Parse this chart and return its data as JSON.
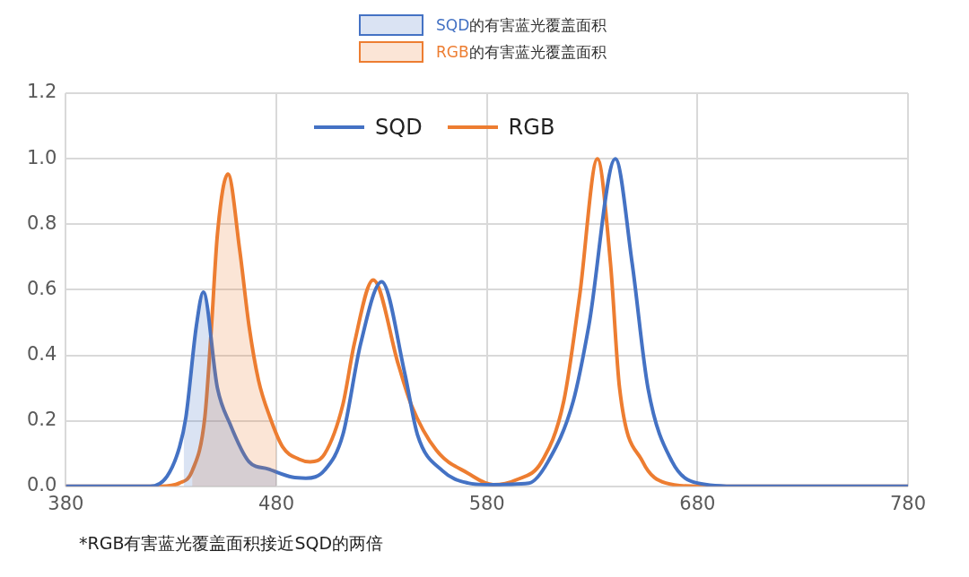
{
  "chart_data": {
    "type": "line",
    "annotations": [
      "*RGB有害蓝光覆盖面积接近SQD的两倍"
    ],
    "xlim": [
      380,
      780
    ],
    "xticks": [
      380,
      480,
      580,
      680,
      780
    ],
    "ylim": [
      0,
      1.2
    ],
    "yticks": [
      {
        "value": 0,
        "label": "0.0"
      },
      {
        "value": 0.2,
        "label": "0.2"
      },
      {
        "value": 0.4,
        "label": "0.4"
      },
      {
        "value": 0.6,
        "label": "0.6"
      },
      {
        "value": 0.8,
        "label": "0.8"
      },
      {
        "value": 1,
        "label": "1.0"
      },
      {
        "value": 1.2,
        "label": "1.2"
      }
    ],
    "grid": true,
    "legend": "top",
    "marker": "none",
    "line_style": "solid",
    "series": [
      {
        "type": "area",
        "name": "SQD的有害蓝光覆盖面积",
        "color": "#4472c4",
        "x": [
          436,
          437,
          442,
          445.3,
          452,
          458,
          467,
          476,
          480
        ],
        "values": [
          0.17,
          0.21,
          0.49,
          0.593,
          0.3,
          0.19,
          0.075,
          0.053,
          0.045
        ]
      },
      {
        "type": "area",
        "name": "RGB的有害蓝光覆盖面积",
        "color": "#ed7d31",
        "x": [
          440,
          446,
          449,
          452,
          457,
          462.6,
          467,
          471.5,
          477,
          480
        ],
        "values": [
          0.047,
          0.21,
          0.47,
          0.77,
          0.953,
          0.72,
          0.49,
          0.324,
          0.21,
          0.17
        ]
      },
      {
        "type": "line",
        "name": "SQD",
        "color": "#4472c4",
        "x": [
          380,
          420,
          428,
          434,
          437,
          442,
          445.3,
          452,
          458,
          467,
          476,
          487.5,
          494,
          503,
          511.6,
          520,
          530,
          541,
          547,
          559,
          571,
          580,
          600,
          609,
          621,
          628.4,
          641,
          649,
          656.5,
          668,
          680,
          700,
          780
        ],
        "values": [
          0,
          0,
          0.03,
          0.12,
          0.21,
          0.49,
          0.593,
          0.3,
          0.19,
          0.075,
          0.053,
          0.028,
          0.025,
          0.05,
          0.158,
          0.435,
          0.624,
          0.344,
          0.158,
          0.047,
          0.01,
          0.005,
          0.01,
          0.075,
          0.26,
          0.49,
          1,
          0.68,
          0.3,
          0.075,
          0.01,
          0,
          0
        ]
      },
      {
        "type": "line",
        "name": "RGB",
        "color": "#ed7d31",
        "x": [
          380,
          425,
          434,
          440,
          446,
          449,
          452,
          457,
          462.6,
          467,
          471.5,
          477,
          483,
          490.7,
          496,
          503,
          511.6,
          517,
          526,
          538,
          544,
          556,
          571,
          583,
          594,
          606,
          616.5,
          624,
          632.5,
          638.7,
          643,
          654,
          665,
          680,
          780
        ],
        "values": [
          0,
          0,
          0.01,
          0.047,
          0.21,
          0.47,
          0.77,
          0.953,
          0.72,
          0.49,
          0.324,
          0.21,
          0.12,
          0.083,
          0.075,
          0.1,
          0.25,
          0.435,
          0.63,
          0.37,
          0.25,
          0.11,
          0.04,
          0.005,
          0.02,
          0.075,
          0.26,
          0.58,
          1,
          0.68,
          0.3,
          0.075,
          0.01,
          0,
          0
        ]
      }
    ]
  }
}
